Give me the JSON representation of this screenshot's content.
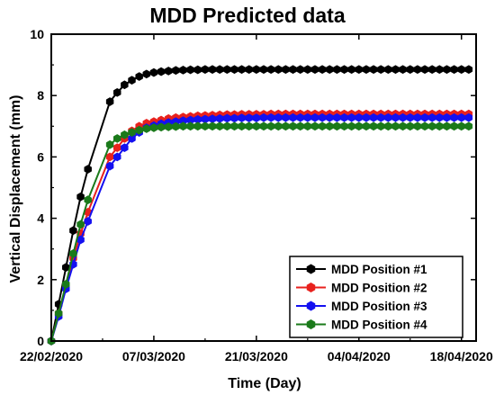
{
  "chart_data": {
    "type": "line",
    "title": "MDD Predicted data",
    "xlabel": "Time (Day)",
    "ylabel": "Vertical Displacement (mm)",
    "x_start_date": "22/02/2020",
    "x_tick_labels": [
      "22/02/2020",
      "07/03/2020",
      "21/03/2020",
      "04/04/2020",
      "18/04/2020"
    ],
    "x_tick_days": [
      0,
      14,
      28,
      42,
      56
    ],
    "xlim_days": [
      0,
      58
    ],
    "ylim": [
      0,
      10
    ],
    "y_ticks": [
      0,
      2,
      4,
      6,
      8,
      10
    ],
    "grid": false,
    "legend_position": "bottom-right",
    "series": [
      {
        "name": "MDD Position #1",
        "color": "#000000",
        "x_days": [
          0,
          1,
          2,
          3,
          4,
          5,
          8,
          9,
          10,
          11,
          12,
          13,
          14,
          15,
          16,
          17,
          18,
          19,
          20,
          21,
          22,
          23,
          24,
          25,
          26,
          27,
          28,
          29,
          30,
          31,
          32,
          33,
          34,
          35,
          36,
          37,
          38,
          39,
          40,
          41,
          42,
          43,
          44,
          45,
          46,
          47,
          48,
          49,
          50,
          51,
          52,
          53,
          54,
          55,
          56,
          57
        ],
        "values": [
          0,
          1.2,
          2.4,
          3.6,
          4.7,
          5.6,
          7.8,
          8.1,
          8.35,
          8.5,
          8.62,
          8.7,
          8.75,
          8.78,
          8.8,
          8.82,
          8.83,
          8.84,
          8.84,
          8.85,
          8.85,
          8.85,
          8.85,
          8.85,
          8.85,
          8.85,
          8.85,
          8.85,
          8.85,
          8.85,
          8.85,
          8.85,
          8.85,
          8.85,
          8.85,
          8.85,
          8.85,
          8.85,
          8.85,
          8.85,
          8.85,
          8.85,
          8.85,
          8.85,
          8.85,
          8.85,
          8.85,
          8.85,
          8.85,
          8.85,
          8.85,
          8.85,
          8.85,
          8.85,
          8.85,
          8.85
        ]
      },
      {
        "name": "MDD Position #2",
        "color": "#e8211d",
        "x_days": [
          0,
          1,
          2,
          3,
          4,
          5,
          8,
          9,
          10,
          11,
          12,
          13,
          14,
          15,
          16,
          17,
          18,
          19,
          20,
          21,
          22,
          23,
          24,
          25,
          26,
          27,
          28,
          29,
          30,
          31,
          32,
          33,
          34,
          35,
          36,
          37,
          38,
          39,
          40,
          41,
          42,
          43,
          44,
          45,
          46,
          47,
          48,
          49,
          50,
          51,
          52,
          53,
          54,
          55,
          56,
          57
        ],
        "values": [
          0,
          0.9,
          1.8,
          2.7,
          3.5,
          4.2,
          6.0,
          6.3,
          6.6,
          6.85,
          7.0,
          7.1,
          7.15,
          7.2,
          7.25,
          7.28,
          7.3,
          7.32,
          7.34,
          7.35,
          7.36,
          7.37,
          7.38,
          7.38,
          7.39,
          7.39,
          7.39,
          7.39,
          7.4,
          7.4,
          7.4,
          7.4,
          7.4,
          7.4,
          7.4,
          7.4,
          7.4,
          7.4,
          7.4,
          7.4,
          7.4,
          7.4,
          7.4,
          7.4,
          7.4,
          7.4,
          7.4,
          7.4,
          7.4,
          7.4,
          7.4,
          7.4,
          7.4,
          7.4,
          7.4,
          7.4
        ]
      },
      {
        "name": "MDD Position #3",
        "color": "#1410f0",
        "x_days": [
          0,
          1,
          2,
          3,
          4,
          5,
          8,
          9,
          10,
          11,
          12,
          13,
          14,
          15,
          16,
          17,
          18,
          19,
          20,
          21,
          22,
          23,
          24,
          25,
          26,
          27,
          28,
          29,
          30,
          31,
          32,
          33,
          34,
          35,
          36,
          37,
          38,
          39,
          40,
          41,
          42,
          43,
          44,
          45,
          46,
          47,
          48,
          49,
          50,
          51,
          52,
          53,
          54,
          55,
          56,
          57
        ],
        "values": [
          0,
          0.8,
          1.7,
          2.5,
          3.3,
          3.9,
          5.7,
          6.0,
          6.3,
          6.6,
          6.8,
          6.95,
          7.02,
          7.08,
          7.12,
          7.15,
          7.18,
          7.2,
          7.22,
          7.23,
          7.24,
          7.25,
          7.26,
          7.26,
          7.27,
          7.27,
          7.27,
          7.28,
          7.28,
          7.28,
          7.28,
          7.28,
          7.28,
          7.28,
          7.28,
          7.28,
          7.28,
          7.28,
          7.28,
          7.28,
          7.28,
          7.28,
          7.28,
          7.28,
          7.28,
          7.28,
          7.28,
          7.28,
          7.28,
          7.28,
          7.28,
          7.28,
          7.28,
          7.28,
          7.28,
          7.28
        ]
      },
      {
        "name": "MDD Position #4",
        "color": "#1a7a1a",
        "x_days": [
          0,
          1,
          2,
          3,
          4,
          5,
          8,
          9,
          10,
          11,
          12,
          13,
          14,
          15,
          16,
          17,
          18,
          19,
          20,
          21,
          22,
          23,
          24,
          25,
          26,
          27,
          28,
          29,
          30,
          31,
          32,
          33,
          34,
          35,
          36,
          37,
          38,
          39,
          40,
          41,
          42,
          43,
          44,
          45,
          46,
          47,
          48,
          49,
          50,
          51,
          52,
          53,
          54,
          55,
          56,
          57
        ],
        "values": [
          0,
          0.9,
          1.85,
          2.85,
          3.8,
          4.6,
          6.4,
          6.6,
          6.72,
          6.8,
          6.87,
          6.92,
          6.95,
          6.97,
          6.98,
          6.99,
          7.0,
          7.0,
          7.0,
          7.0,
          7.0,
          7.0,
          7.0,
          7.0,
          7.0,
          7.0,
          7.0,
          7.0,
          7.0,
          7.0,
          7.0,
          7.0,
          7.0,
          7.0,
          7.0,
          7.0,
          7.0,
          7.0,
          7.0,
          7.0,
          7.0,
          7.0,
          7.0,
          7.0,
          7.0,
          7.0,
          7.0,
          7.0,
          7.0,
          7.0,
          7.0,
          7.0,
          7.0,
          7.0,
          7.0,
          7.0
        ]
      }
    ]
  }
}
